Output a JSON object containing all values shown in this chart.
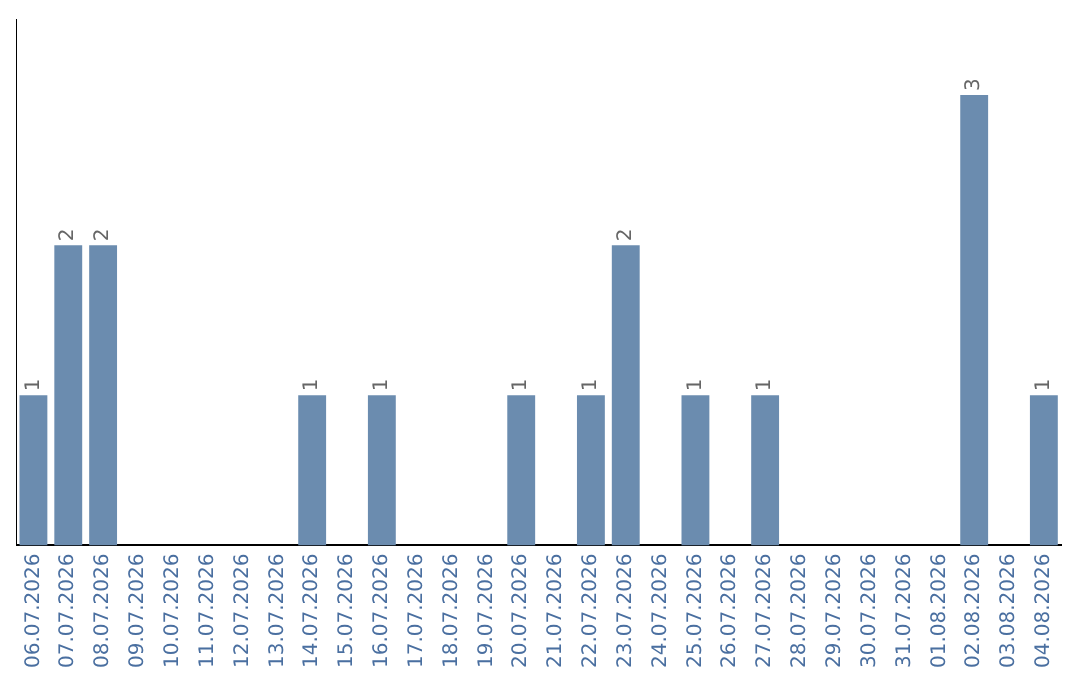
{
  "chart_data": {
    "type": "bar",
    "categories": [
      "06.07.2026",
      "07.07.2026",
      "08.07.2026",
      "09.07.2026",
      "10.07.2026",
      "11.07.2026",
      "12.07.2026",
      "13.07.2026",
      "14.07.2026",
      "15.07.2026",
      "16.07.2026",
      "17.07.2026",
      "18.07.2026",
      "19.07.2026",
      "20.07.2026",
      "21.07.2026",
      "22.07.2026",
      "23.07.2026",
      "24.07.2026",
      "25.07.2026",
      "26.07.2026",
      "27.07.2026",
      "28.07.2026",
      "29.07.2026",
      "30.07.2026",
      "31.07.2026",
      "01.08.2026",
      "02.08.2026",
      "03.08.2026",
      "04.08.2026"
    ],
    "values": [
      1,
      2,
      2,
      0,
      0,
      0,
      0,
      0,
      1,
      0,
      1,
      0,
      0,
      0,
      1,
      0,
      1,
      2,
      0,
      1,
      0,
      1,
      0,
      0,
      0,
      0,
      0,
      3,
      0,
      1
    ],
    "value_labels": [
      "1",
      "2",
      "2",
      null,
      null,
      null,
      null,
      null,
      "1",
      null,
      "1",
      null,
      null,
      null,
      "1",
      null,
      "1",
      "2",
      null,
      "1",
      null,
      "1",
      null,
      null,
      null,
      null,
      null,
      "3",
      null,
      "1"
    ],
    "color": "#6b8caf",
    "grid": false,
    "legend": false
  }
}
